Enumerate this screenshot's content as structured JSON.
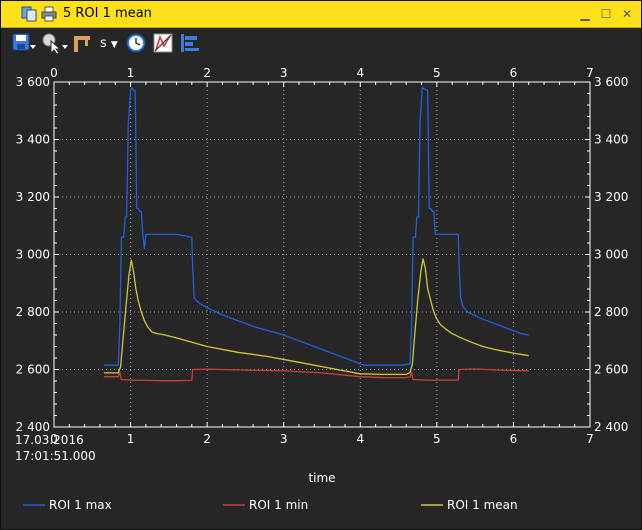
{
  "window": {
    "title": "5 ROI 1 mean",
    "minimize_glyph": "▁",
    "restore_glyph": "☐",
    "close_glyph": "✕"
  },
  "toolbar": {
    "unit_label": "s",
    "icons": [
      "save-icon",
      "cursor-tool-icon",
      "marker-icon",
      "time-unit-dropdown",
      "clock-icon",
      "zero-icon",
      "legend-icon"
    ]
  },
  "chart_data": {
    "type": "line",
    "xlabel": "time",
    "start_label": [
      "17.03.2016",
      "17:01:51.000"
    ],
    "xlim": [
      0,
      7
    ],
    "ylim": [
      2400,
      3600
    ],
    "x_ticks": [
      0,
      1,
      2,
      3,
      4,
      5,
      6,
      7
    ],
    "y_ticks": [
      2400,
      2600,
      2800,
      3000,
      3200,
      3400,
      3600
    ],
    "y_tick_labels": [
      "2 400",
      "2 600",
      "2 800",
      "3 000",
      "3 200",
      "3 400",
      "3 600"
    ],
    "grid": true,
    "legend_position": "bottom",
    "colors": {
      "background": "#262626",
      "grid": "#a0a0a0",
      "axis": "#ffffff"
    },
    "series": [
      {
        "name": "ROI 1 max",
        "color": "#1f5fe0",
        "x": [
          0.65,
          0.84,
          0.86,
          0.88,
          0.91,
          0.93,
          0.95,
          0.97,
          1.0,
          1.02,
          1.04,
          1.06,
          1.08,
          1.1,
          1.12,
          1.14,
          1.16,
          1.18,
          1.2,
          1.25,
          1.4,
          1.6,
          1.8,
          1.81,
          1.83,
          1.86,
          1.9,
          2.0,
          2.2,
          2.4,
          2.6,
          2.8,
          3.0,
          3.2,
          3.4,
          3.6,
          3.8,
          4.0,
          4.05,
          4.3,
          4.55,
          4.65,
          4.67,
          4.69,
          4.72,
          4.74,
          4.76,
          4.78,
          4.81,
          4.85,
          4.88,
          4.9,
          4.92,
          4.94,
          4.96,
          4.98,
          5.0,
          5.2,
          5.28,
          5.29,
          5.31,
          5.34,
          5.4,
          5.6,
          5.8,
          6.0,
          6.1,
          6.2
        ],
        "values": [
          2615,
          2615,
          2760,
          3060,
          3060,
          3130,
          3130,
          3460,
          3570,
          3580,
          3570,
          3570,
          3160,
          3160,
          3150,
          3150,
          3070,
          3020,
          3070,
          3070,
          3070,
          3070,
          3060,
          2960,
          2850,
          2840,
          2830,
          2815,
          2790,
          2770,
          2750,
          2735,
          2720,
          2700,
          2680,
          2660,
          2640,
          2620,
          2615,
          2615,
          2615,
          2620,
          2760,
          3060,
          3060,
          3130,
          3130,
          3460,
          3580,
          3575,
          3570,
          3160,
          3160,
          3150,
          3150,
          3070,
          3070,
          3070,
          3070,
          2960,
          2850,
          2820,
          2800,
          2775,
          2755,
          2735,
          2725,
          2720
        ]
      },
      {
        "name": "ROI 1 min",
        "color": "#d23c3c",
        "x": [
          0.65,
          0.84,
          0.86,
          0.88,
          0.92,
          1.0,
          1.2,
          1.4,
          1.6,
          1.8,
          1.81,
          2.0,
          2.2,
          2.5,
          3.0,
          3.5,
          4.0,
          4.3,
          4.6,
          4.65,
          4.67,
          4.69,
          4.72,
          4.9,
          5.28,
          5.29,
          5.5,
          5.8,
          6.2
        ],
        "values": [
          2575,
          2575,
          2590,
          2565,
          2565,
          2563,
          2562,
          2561,
          2561,
          2562,
          2600,
          2601,
          2600,
          2598,
          2595,
          2588,
          2575,
          2572,
          2572,
          2575,
          2590,
          2565,
          2565,
          2563,
          2563,
          2600,
          2602,
          2598,
          2595
        ]
      },
      {
        "name": "ROI 1 mean",
        "color": "#d2c832",
        "x": [
          0.65,
          0.84,
          0.87,
          0.9,
          0.94,
          0.98,
          1.01,
          1.04,
          1.07,
          1.1,
          1.14,
          1.18,
          1.22,
          1.28,
          1.35,
          1.45,
          1.6,
          1.8,
          2.0,
          2.4,
          2.8,
          3.2,
          3.6,
          4.0,
          4.3,
          4.6,
          4.65,
          4.68,
          4.71,
          4.75,
          4.79,
          4.82,
          4.85,
          4.88,
          4.92,
          4.96,
          5.0,
          5.05,
          5.12,
          5.2,
          5.3,
          5.45,
          5.6,
          5.8,
          6.0,
          6.2
        ],
        "values": [
          2588,
          2588,
          2610,
          2700,
          2820,
          2930,
          2980,
          2940,
          2880,
          2840,
          2800,
          2770,
          2750,
          2730,
          2725,
          2720,
          2710,
          2695,
          2680,
          2660,
          2645,
          2625,
          2605,
          2585,
          2583,
          2583,
          2590,
          2620,
          2720,
          2840,
          2940,
          2985,
          2950,
          2880,
          2840,
          2800,
          2775,
          2755,
          2740,
          2725,
          2712,
          2695,
          2680,
          2667,
          2657,
          2648
        ]
      }
    ]
  }
}
